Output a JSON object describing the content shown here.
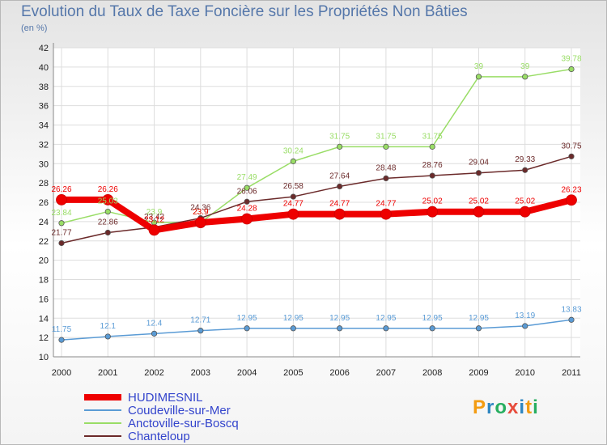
{
  "title": "Evolution du Taux de Taxe Foncière sur les Propriétés Non Bâties",
  "subtitle": "(en %)",
  "logo": {
    "text": "Proxiti",
    "letters": [
      "P",
      "r",
      "o",
      "x",
      "i",
      "t",
      "i"
    ],
    "colors": [
      "#f39c12",
      "#2e86c1",
      "#27ae60",
      "#e74c3c",
      "#2e86c1",
      "#f39c12",
      "#27ae60"
    ]
  },
  "colors": {
    "hudimesnil": "#ee0000",
    "coudeville": "#5a9bd5",
    "anctoville": "#99dd66",
    "chanteloup": "#6b2a2a"
  },
  "chart_data": {
    "type": "line",
    "title": "Evolution du Taux de Taxe Foncière sur les Propriétés Non Bâties",
    "ylabel": "(en %)",
    "xlabel": "",
    "ylim": [
      10,
      42
    ],
    "yticks": [
      10,
      12,
      14,
      16,
      18,
      20,
      22,
      24,
      26,
      28,
      30,
      32,
      34,
      36,
      38,
      40,
      42
    ],
    "grid": true,
    "legend": "bottom-left",
    "categories": [
      "2000",
      "2001",
      "2002",
      "2003",
      "2004",
      "2005",
      "2006",
      "2007",
      "2008",
      "2009",
      "2010",
      "2011"
    ],
    "series": [
      {
        "name": "Coudeville-sur-Mer",
        "key": "coudeville",
        "width": 1.5,
        "values": [
          11.75,
          12.1,
          12.4,
          12.71,
          12.95,
          12.95,
          12.95,
          12.95,
          12.95,
          12.95,
          13.19,
          13.83
        ],
        "labels": [
          "11.75",
          "12.1",
          "12.4",
          "12.71",
          "12.95",
          "12.95",
          "12.95",
          "12.95",
          "12.95",
          "12.95",
          "13.19",
          "13.83"
        ]
      },
      {
        "name": "Anctoville-sur-Boscq",
        "key": "anctoville",
        "width": 1.5,
        "values": [
          23.84,
          25.03,
          23.9,
          23.9,
          27.49,
          30.24,
          31.75,
          31.75,
          31.75,
          39,
          39,
          39.78
        ],
        "labels": [
          "23.84",
          "25.03",
          "23.9",
          "23.9",
          "27.49",
          "30.24",
          "31.75",
          "31.75",
          "31.75",
          "39",
          "39",
          "39.78"
        ]
      },
      {
        "name": "Chanteloup",
        "key": "chanteloup",
        "width": 1.5,
        "values": [
          21.77,
          22.86,
          23.42,
          24.36,
          26.06,
          26.58,
          27.64,
          28.48,
          28.76,
          29.04,
          29.33,
          30.75
        ],
        "labels": [
          "21.77",
          "22.86",
          "23.42",
          "24.36",
          "26.06",
          "26.58",
          "27.64",
          "28.48",
          "28.76",
          "29.04",
          "29.33",
          "30.75"
        ]
      },
      {
        "name": "HUDIMESNIL",
        "key": "hudimesnil",
        "width": 8,
        "values": [
          26.26,
          26.26,
          23.12,
          23.9,
          24.28,
          24.77,
          24.77,
          24.77,
          25.02,
          25.02,
          25.02,
          26.23
        ],
        "labels": [
          "26.26",
          "26.26",
          "23.12",
          "23.9",
          "24.28",
          "24.77",
          "24.77",
          "24.77",
          "25.02",
          "25.02",
          "25.02",
          "26.23"
        ]
      }
    ],
    "legend_order": [
      "HUDIMESNIL",
      "Coudeville-sur-Mer",
      "Anctoville-sur-Boscq",
      "Chanteloup"
    ]
  }
}
